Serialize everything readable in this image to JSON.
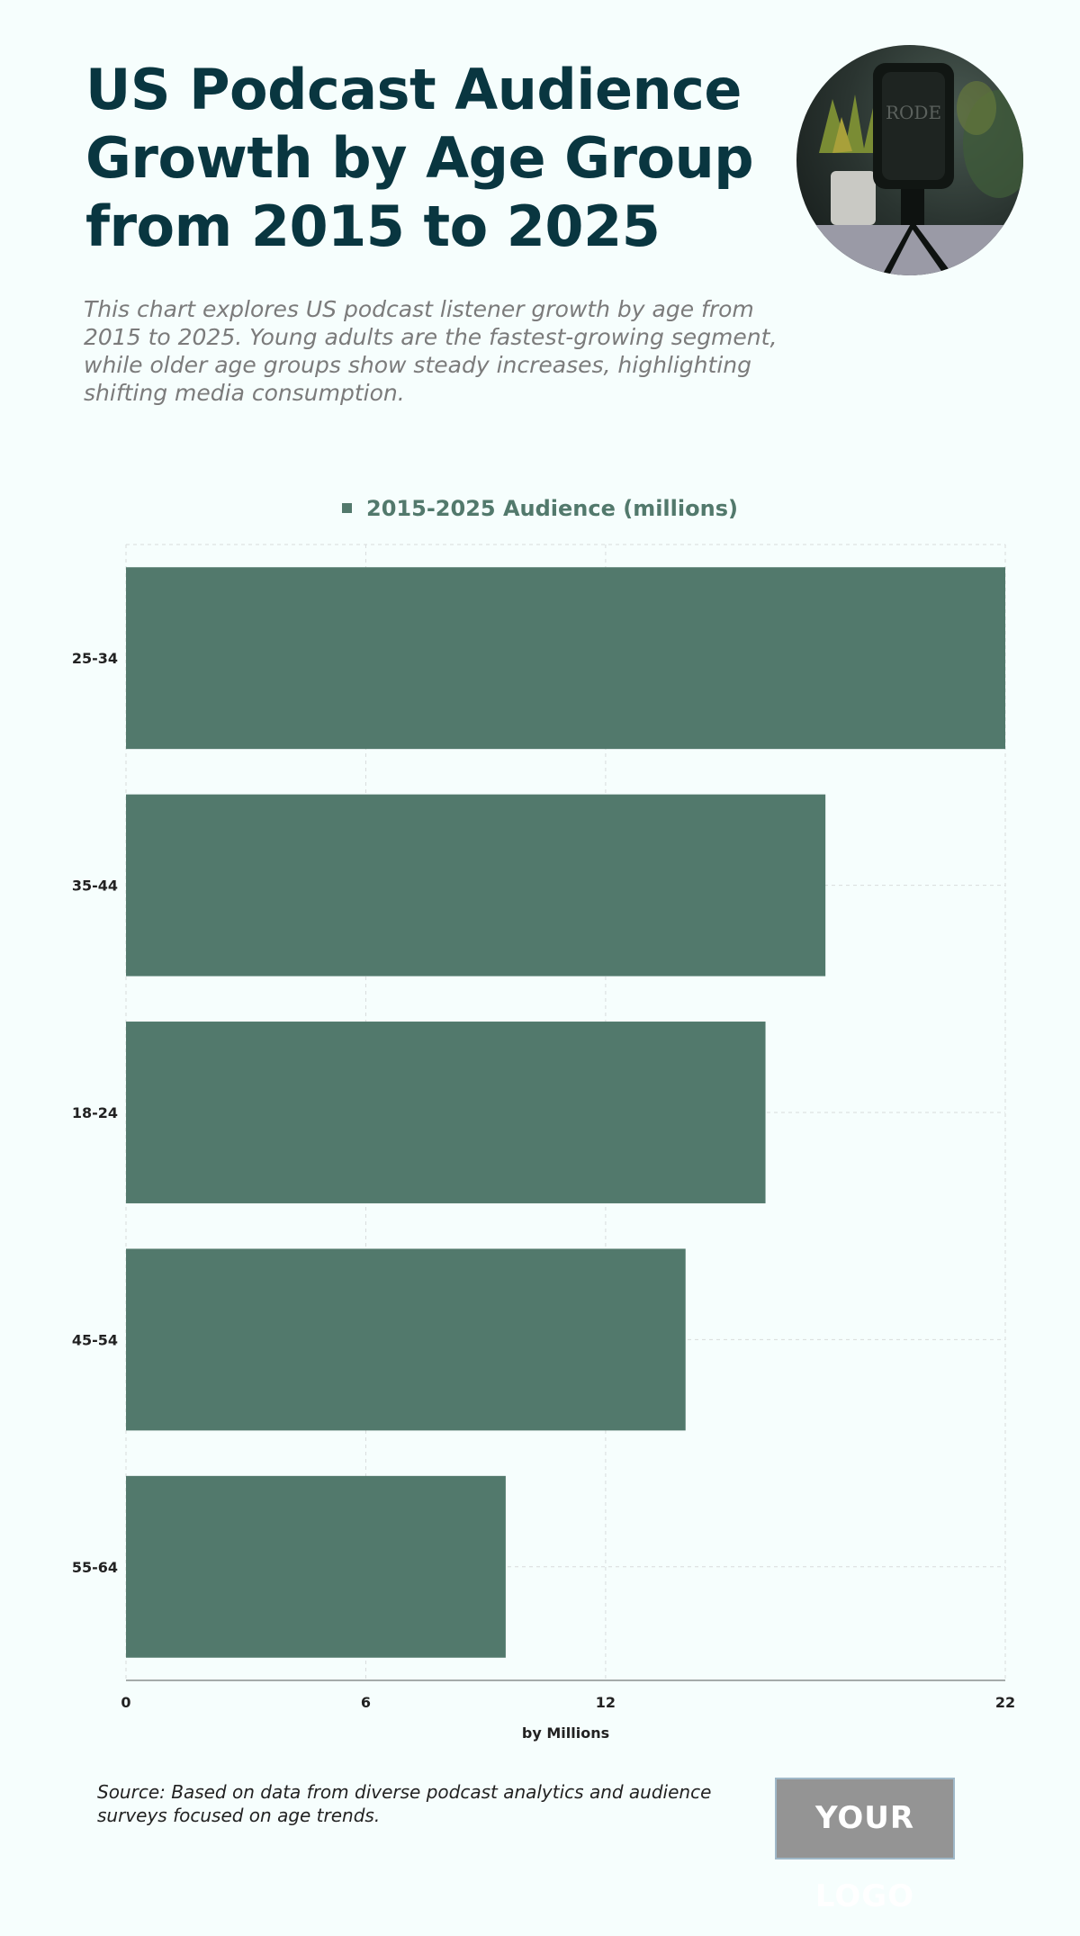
{
  "header": {
    "title": "US Podcast Audience Growth by Age Group from 2015 to 2025",
    "subtitle": "This chart explores US podcast listener growth by age from 2015 to 2025. Young adults are the fastest-growing segment, while older age groups show steady increases, highlighting shifting media consumption.",
    "photo_icon": "microphone-photo"
  },
  "colors": {
    "title": "#093640",
    "bar": "#52796c",
    "background": "#f6fefd",
    "logo_bg": "#949494"
  },
  "chart_data": {
    "type": "bar",
    "orientation": "horizontal",
    "categories": [
      "25-34",
      "35-44",
      "18-24",
      "45-54",
      "55-64"
    ],
    "series": [
      {
        "name": "2015-2025 Audience (millions)",
        "values": [
          22,
          17.5,
          16,
          14,
          9.5
        ]
      }
    ],
    "xlabel": "by Millions",
    "ylabel": "",
    "xlim": [
      0,
      22
    ],
    "xticks": [
      0,
      6,
      12,
      22
    ],
    "grid": true,
    "legend": "top-center"
  },
  "footer": {
    "source": "Source: Based on data from diverse podcast analytics and audience surveys focused on age trends.",
    "logo": "YOUR LOGO"
  }
}
